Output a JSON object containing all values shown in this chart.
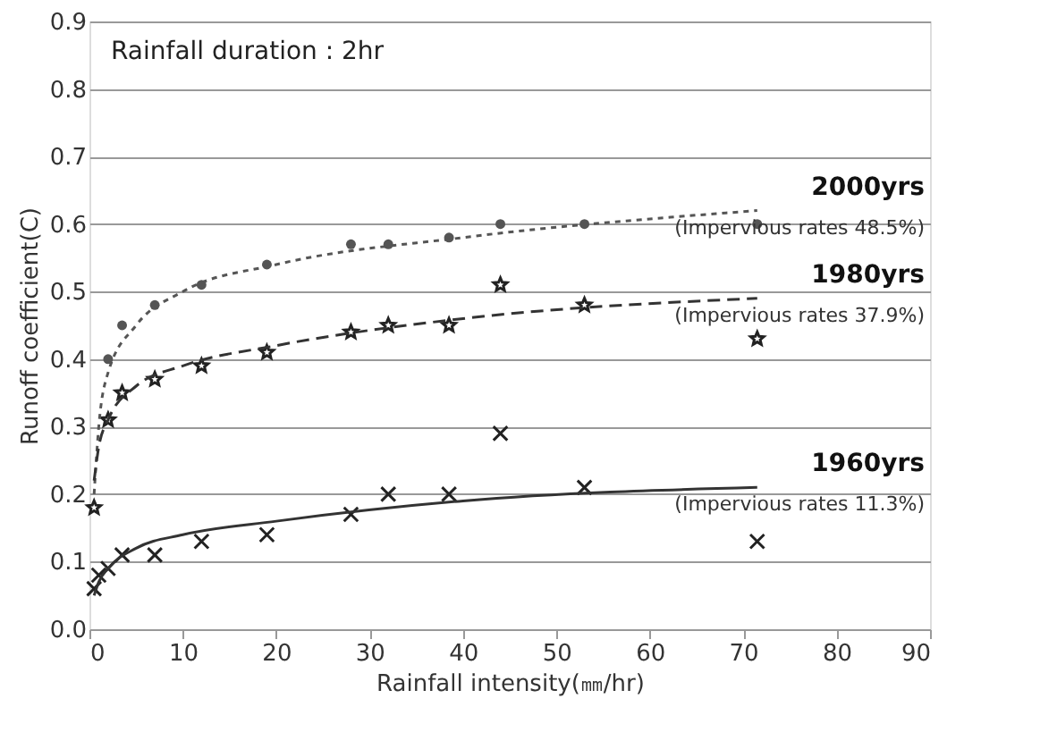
{
  "chart_data": {
    "type": "scatter",
    "xlabel": "Rainfall intensity(㎜/hr)",
    "ylabel": "Runoff coefficient(C)",
    "xlim": [
      0,
      90
    ],
    "xticks": [
      0,
      10,
      20,
      30,
      40,
      50,
      60,
      70,
      80,
      90
    ],
    "ylim": [
      0,
      0.9
    ],
    "yticks": [
      {
        "value": 0,
        "label": "0.0"
      },
      0.1,
      0.2,
      0.3,
      0.4,
      0.5,
      0.6,
      0.7,
      0.8,
      0.9
    ],
    "grid": "y",
    "annotations": [
      "Rainfall duration : 2hr",
      "(Impervious rates 48.5%)",
      "(Impervious rates 37.9%)",
      "(Impervious rates 11.3%)"
    ],
    "series": [
      {
        "marker": "circle",
        "color": "#555555",
        "x": [
          2,
          3.5,
          7,
          12,
          19,
          28,
          32,
          38.5,
          44,
          53,
          71.5
        ],
        "values": [
          0.4,
          0.45,
          0.48,
          0.51,
          0.54,
          0.57,
          0.57,
          0.58,
          0.6,
          0.6,
          0.6
        ]
      },
      {
        "marker": "star",
        "color": "#222222",
        "x": [
          0.5,
          2,
          3.5,
          7,
          12,
          19,
          28,
          32,
          38.5,
          44,
          53,
          71.5
        ],
        "values": [
          0.18,
          0.31,
          0.35,
          0.37,
          0.39,
          0.41,
          0.44,
          0.45,
          0.45,
          0.51,
          0.48,
          0.43
        ]
      },
      {
        "marker": "cross",
        "color": "#222222",
        "x": [
          0.5,
          1,
          2,
          3.5,
          7,
          12,
          19,
          28,
          32,
          38.5,
          44,
          53,
          71.5
        ],
        "values": [
          0.06,
          0.08,
          0.09,
          0.11,
          0.11,
          0.13,
          0.14,
          0.17,
          0.2,
          0.2,
          0.29,
          0.21,
          0.13
        ]
      },
      {
        "type": "line",
        "name": "2000yrs",
        "line_style": "dotted",
        "marker": "none",
        "color": "#555555",
        "x": [
          0.5,
          1,
          2,
          5,
          10,
          20,
          40,
          71.5
        ],
        "values": [
          0.2,
          0.3,
          0.38,
          0.45,
          0.5,
          0.54,
          0.58,
          0.62
        ]
      },
      {
        "type": "line",
        "name": "1980yrs",
        "line_style": "dashed",
        "marker": "none",
        "color": "#333333",
        "x": [
          0.5,
          1,
          2,
          5,
          10,
          20,
          40,
          71.5
        ],
        "values": [
          0.22,
          0.27,
          0.31,
          0.36,
          0.39,
          0.42,
          0.46,
          0.49
        ]
      },
      {
        "type": "line",
        "name": "1960yrs",
        "line_style": "solid",
        "marker": "none",
        "color": "#333333",
        "x": [
          0.5,
          1,
          2,
          5,
          10,
          20,
          40,
          71.5
        ],
        "values": [
          0.05,
          0.07,
          0.09,
          0.12,
          0.14,
          0.16,
          0.19,
          0.21
        ]
      }
    ]
  }
}
